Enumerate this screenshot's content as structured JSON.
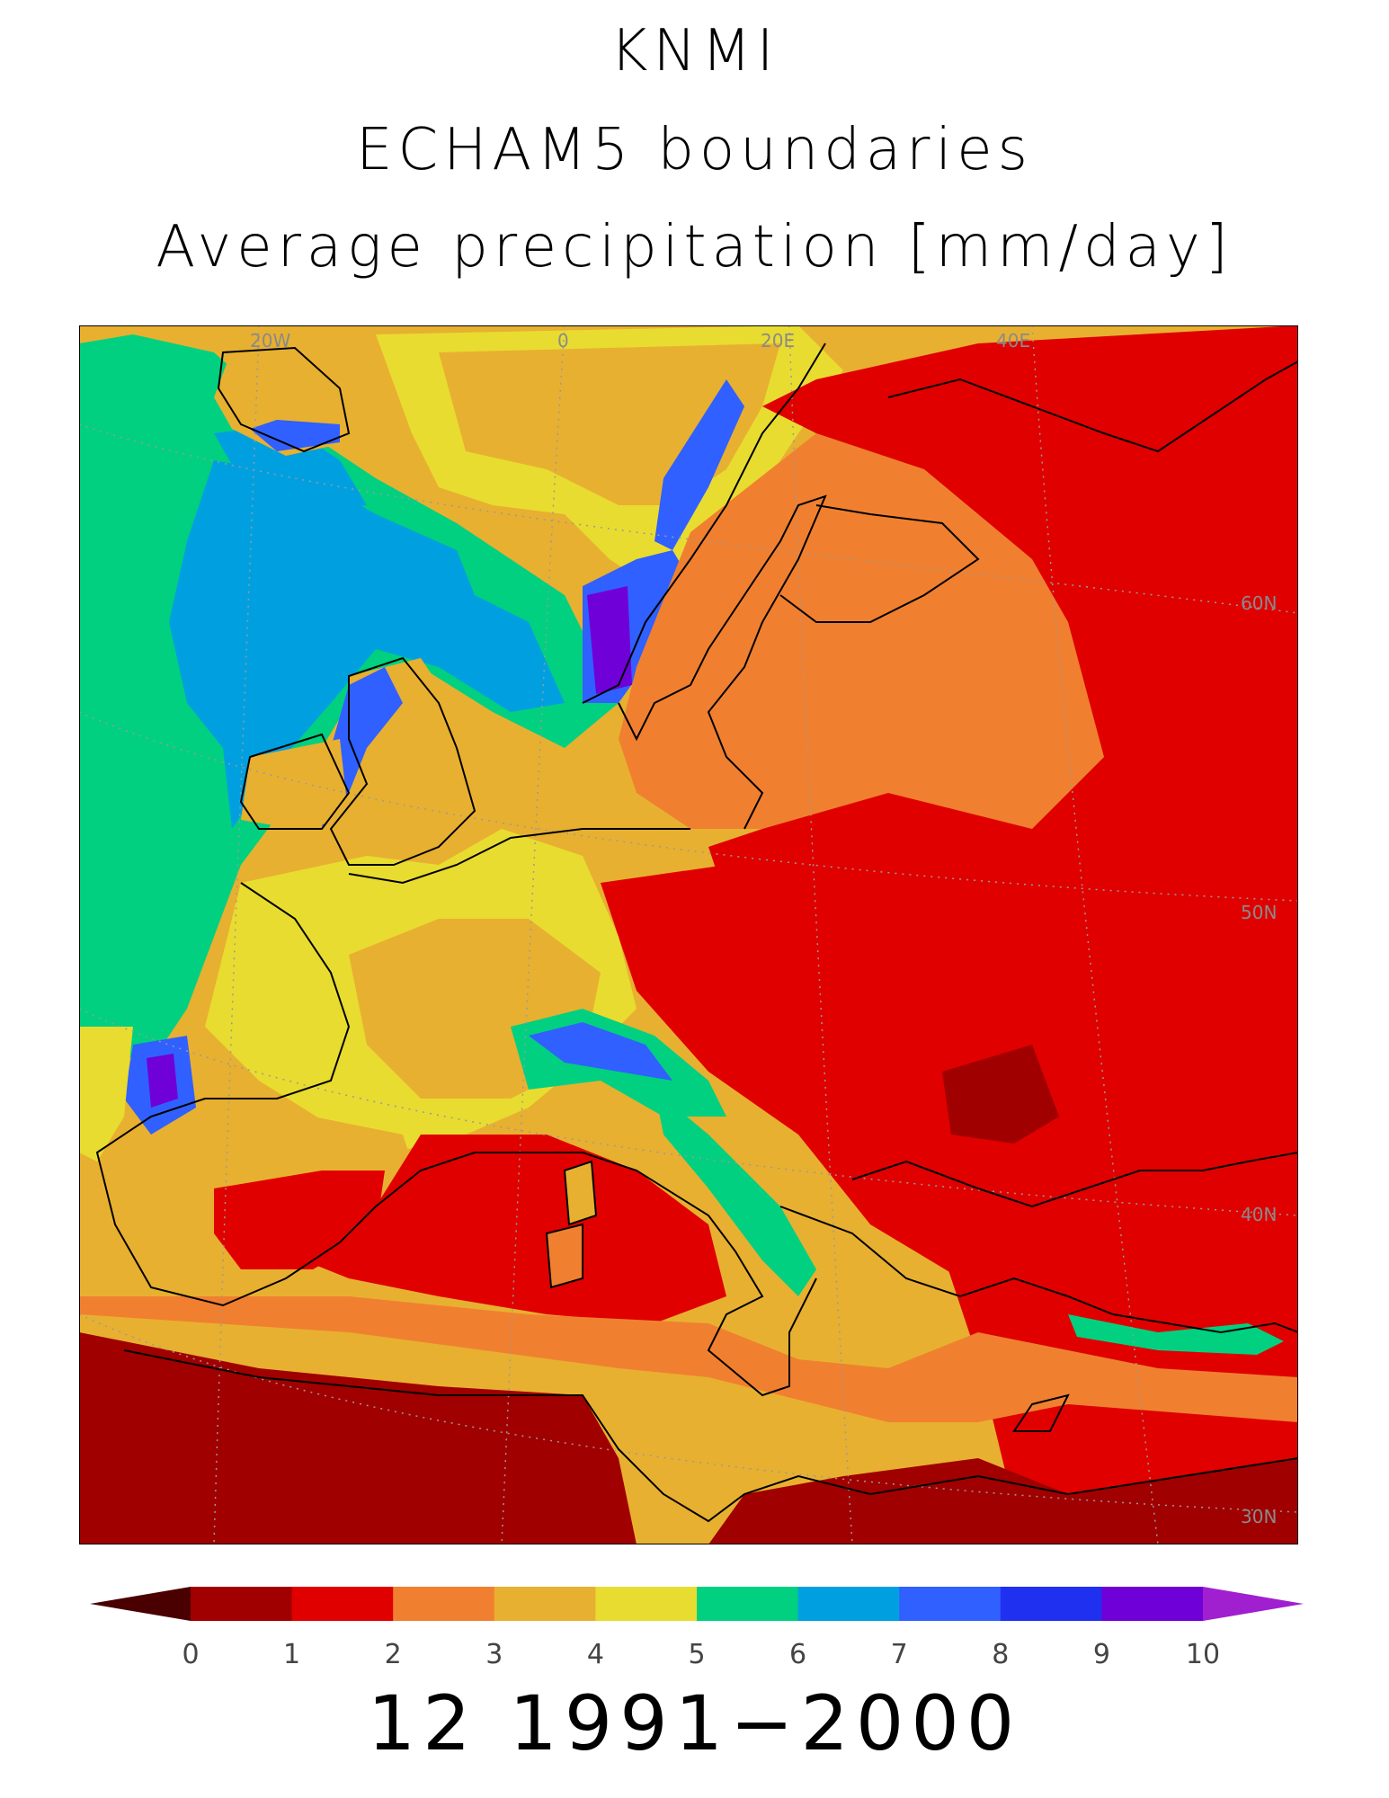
{
  "title": {
    "line1": "KNMI",
    "line2": "ECHAM5 boundaries",
    "line3": "Average precipitation [mm/day]"
  },
  "map": {
    "lon_labels": [
      "20W",
      "0",
      "20E",
      "40E"
    ],
    "lat_labels": [
      "60N",
      "50N",
      "40N",
      "30N"
    ],
    "coastline_color": "#000000",
    "gridline_color": "#9a9a9a"
  },
  "colorbar": {
    "ticks": [
      "0",
      "1",
      "2",
      "3",
      "4",
      "5",
      "6",
      "7",
      "8",
      "9",
      "10"
    ],
    "below_min_color": "#4a0000",
    "above_max_color": "#a020d0",
    "bins": [
      {
        "range": "0-1",
        "color": "#a00000"
      },
      {
        "range": "1-2",
        "color": "#e00000"
      },
      {
        "range": "2-3",
        "color": "#f08030"
      },
      {
        "range": "3-4",
        "color": "#e8b030"
      },
      {
        "range": "4-5",
        "color": "#e8dc30"
      },
      {
        "range": "5-6",
        "color": "#00d080"
      },
      {
        "range": "6-7",
        "color": "#00a0e0"
      },
      {
        "range": "7-8",
        "color": "#3060ff"
      },
      {
        "range": "8-9",
        "color": "#2030f0"
      },
      {
        "range": "9-10",
        "color": "#7000d8"
      }
    ]
  },
  "period": "12 1991−2000"
}
